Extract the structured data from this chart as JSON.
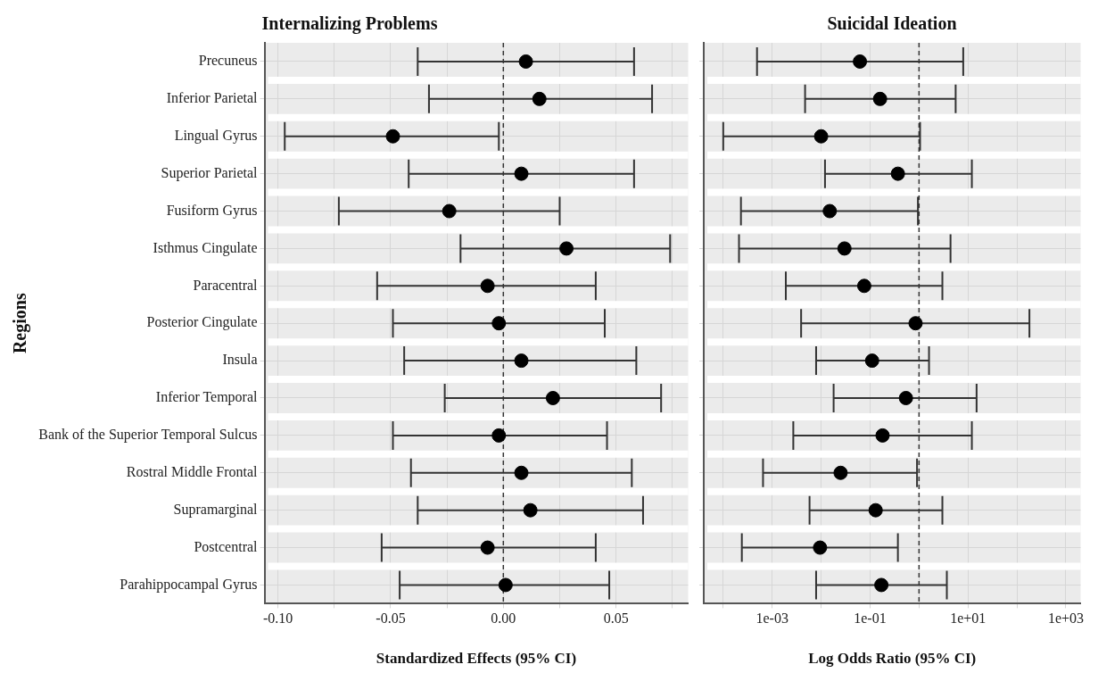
{
  "chart_data": [
    {
      "type": "scatter",
      "orientation": "horizontal",
      "title": "Internalizing Problems",
      "xlabel": "Standardized Effects (95% CI)",
      "ylabel": "Regions",
      "color": "#000000",
      "marker": "circle",
      "grid": true,
      "categories": [
        "Precuneus",
        "Inferior Parietal",
        "Lingual Gyrus",
        "Superior Parietal",
        "Fusiform Gyrus",
        "Isthmus Cingulate",
        "Paracentral",
        "Posterior Cingulate",
        "Insula",
        "Inferior Temporal",
        "Bank of the Superior Temporal Sulcus",
        "Rostral Middle Frontal",
        "Supramarginal",
        "Postcentral",
        "Parahippocampal Gyrus"
      ],
      "values": [
        0.01,
        0.016,
        -0.049,
        0.008,
        -0.024,
        0.028,
        -0.007,
        -0.002,
        0.008,
        0.022,
        -0.002,
        0.008,
        0.012,
        -0.007,
        0.001
      ],
      "errors": [
        [
          -0.038,
          0.058
        ],
        [
          -0.033,
          0.066
        ],
        [
          -0.097,
          -0.002
        ],
        [
          -0.042,
          0.058
        ],
        [
          -0.073,
          0.025
        ],
        [
          -0.019,
          0.074
        ],
        [
          -0.056,
          0.041
        ],
        [
          -0.049,
          0.045
        ],
        [
          -0.044,
          0.059
        ],
        [
          -0.026,
          0.07
        ],
        [
          -0.049,
          0.046
        ],
        [
          -0.041,
          0.057
        ],
        [
          -0.038,
          0.062
        ],
        [
          -0.054,
          0.041
        ],
        [
          -0.046,
          0.047
        ]
      ],
      "xlim": [
        -0.106,
        0.082
      ],
      "xticks": [
        {
          "value": -0.1,
          "label": "-0.10"
        },
        {
          "value": -0.075,
          "label": null
        },
        {
          "value": -0.05,
          "label": "-0.05"
        },
        {
          "value": -0.025,
          "label": null
        },
        {
          "value": 0,
          "label": "0.00"
        },
        {
          "value": 0.025,
          "label": null
        },
        {
          "value": 0.05,
          "label": "0.05"
        },
        {
          "value": 0.075,
          "label": null
        }
      ],
      "ref_lines": [
        {
          "axis": "x",
          "value": 0,
          "line_style": "dashed"
        }
      ]
    },
    {
      "type": "scatter",
      "orientation": "horizontal",
      "title": "Suicidal Ideation",
      "xlabel": "Log Odds Ratio (95% CI)",
      "color": "#000000",
      "marker": "circle",
      "grid": true,
      "log": "x",
      "tick_labels": "x",
      "categories": [
        null,
        null,
        null,
        null,
        null,
        null,
        null,
        null,
        null,
        null,
        null,
        null,
        null,
        null,
        null
      ],
      "values": [
        0.062,
        0.16,
        0.01,
        0.37,
        0.015,
        0.03,
        0.076,
        0.85,
        0.11,
        0.54,
        0.18,
        0.025,
        0.13,
        0.0095,
        0.17
      ],
      "errors": [
        [
          0.00049,
          8.0
        ],
        [
          0.0047,
          5.6
        ],
        [
          0.0001,
          1.05
        ],
        [
          0.012,
          12
        ],
        [
          0.00023,
          0.95
        ],
        [
          0.00021,
          4.4
        ],
        [
          0.0019,
          3.0
        ],
        [
          0.0039,
          180
        ],
        [
          0.0079,
          1.6
        ],
        [
          0.018,
          15
        ],
        [
          0.0027,
          12
        ],
        [
          0.00065,
          0.91
        ],
        [
          0.0058,
          3.0
        ],
        [
          0.00024,
          0.37
        ],
        [
          0.0079,
          3.7
        ]
      ],
      "xlim": [
        4e-05,
        2000
      ],
      "xticks": [
        {
          "value": 0.0001,
          "label": null
        },
        {
          "value": 0.001,
          "label": "1e-03"
        },
        {
          "value": 0.01,
          "label": null
        },
        {
          "value": 0.1,
          "label": "1e-01"
        },
        {
          "value": 1,
          "label": null
        },
        {
          "value": 10,
          "label": "1e+01"
        },
        {
          "value": 100,
          "label": null
        },
        {
          "value": 1000,
          "label": "1e+03"
        }
      ],
      "ref_lines": [
        {
          "axis": "x",
          "value": 1,
          "line_style": "dashed"
        }
      ]
    }
  ]
}
